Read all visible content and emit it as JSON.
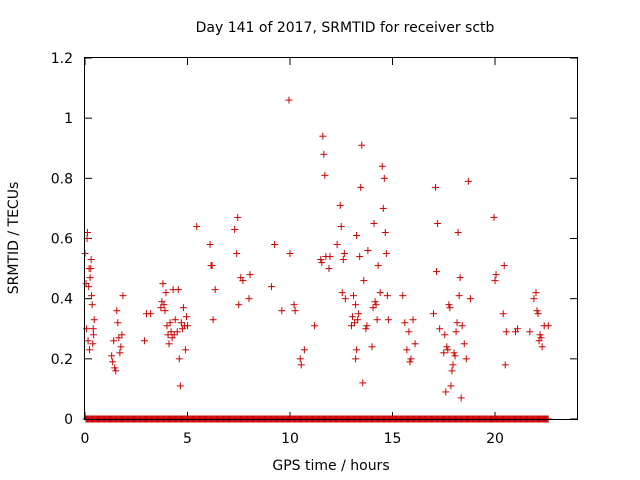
{
  "chart_data": {
    "type": "scatter",
    "title": "Day 141 of 2017, SRMTID for receiver sctb",
    "xlabel": "GPS time / hours",
    "ylabel": "SRMTID / TECUs",
    "xlim": [
      0,
      24
    ],
    "ylim": [
      0,
      1.2
    ],
    "x_ticks": [
      0,
      5,
      10,
      15,
      20
    ],
    "x_tick_labels": [
      "0",
      "5",
      "10",
      "15",
      "20"
    ],
    "y_ticks": [
      0,
      0.2,
      0.4,
      0.6,
      0.8,
      1.0,
      1.2
    ],
    "y_tick_labels": [
      "0",
      "0.2",
      "0.4",
      "0.6",
      "0.8",
      "1",
      "1.2"
    ],
    "grid": false,
    "marker": "plus",
    "marker_color": "#cc0000",
    "zero_baseline_range": [
      0.05,
      22.6
    ],
    "series": [
      {
        "name": "sctb",
        "points": [
          [
            0.0,
            0.55
          ],
          [
            0.05,
            0.45
          ],
          [
            0.08,
            0.3
          ],
          [
            0.1,
            0.6
          ],
          [
            0.12,
            0.62
          ],
          [
            0.15,
            0.26
          ],
          [
            0.18,
            0.44
          ],
          [
            0.2,
            0.5
          ],
          [
            0.22,
            0.23
          ],
          [
            0.25,
            0.47
          ],
          [
            0.28,
            0.5
          ],
          [
            0.3,
            0.53
          ],
          [
            0.32,
            0.41
          ],
          [
            0.35,
            0.38
          ],
          [
            0.38,
            0.25
          ],
          [
            0.4,
            0.3
          ],
          [
            0.42,
            0.28
          ],
          [
            0.45,
            0.33
          ],
          [
            1.3,
            0.21
          ],
          [
            1.35,
            0.19
          ],
          [
            1.4,
            0.26
          ],
          [
            1.45,
            0.17
          ],
          [
            1.5,
            0.16
          ],
          [
            1.55,
            0.36
          ],
          [
            1.6,
            0.32
          ],
          [
            1.65,
            0.27
          ],
          [
            1.7,
            0.22
          ],
          [
            1.75,
            0.24
          ],
          [
            1.8,
            0.28
          ],
          [
            1.85,
            0.41
          ],
          [
            2.9,
            0.26
          ],
          [
            3.0,
            0.35
          ],
          [
            3.2,
            0.35
          ],
          [
            3.7,
            0.37
          ],
          [
            3.75,
            0.39
          ],
          [
            3.8,
            0.45
          ],
          [
            3.85,
            0.38
          ],
          [
            3.9,
            0.36
          ],
          [
            3.95,
            0.42
          ],
          [
            4.0,
            0.31
          ],
          [
            4.05,
            0.28
          ],
          [
            4.1,
            0.25
          ],
          [
            4.15,
            0.32
          ],
          [
            4.2,
            0.29
          ],
          [
            4.25,
            0.27
          ],
          [
            4.3,
            0.43
          ],
          [
            4.35,
            0.28
          ],
          [
            4.4,
            0.33
          ],
          [
            4.5,
            0.29
          ],
          [
            4.55,
            0.43
          ],
          [
            4.6,
            0.2
          ],
          [
            4.65,
            0.11
          ],
          [
            4.7,
            0.32
          ],
          [
            4.75,
            0.3
          ],
          [
            4.8,
            0.37
          ],
          [
            4.85,
            0.31
          ],
          [
            4.9,
            0.23
          ],
          [
            4.95,
            0.34
          ],
          [
            5.0,
            0.31
          ],
          [
            5.45,
            0.64
          ],
          [
            6.1,
            0.58
          ],
          [
            6.15,
            0.51
          ],
          [
            6.2,
            0.51
          ],
          [
            6.25,
            0.33
          ],
          [
            6.35,
            0.43
          ],
          [
            7.3,
            0.63
          ],
          [
            7.4,
            0.55
          ],
          [
            7.45,
            0.67
          ],
          [
            7.5,
            0.38
          ],
          [
            7.6,
            0.47
          ],
          [
            7.7,
            0.46
          ],
          [
            8.0,
            0.4
          ],
          [
            8.05,
            0.48
          ],
          [
            9.1,
            0.44
          ],
          [
            9.25,
            0.58
          ],
          [
            9.6,
            0.36
          ],
          [
            9.95,
            1.06
          ],
          [
            10.0,
            0.55
          ],
          [
            10.2,
            0.38
          ],
          [
            10.25,
            0.36
          ],
          [
            10.5,
            0.2
          ],
          [
            10.55,
            0.18
          ],
          [
            10.7,
            0.23
          ],
          [
            11.2,
            0.31
          ],
          [
            11.5,
            0.53
          ],
          [
            11.55,
            0.52
          ],
          [
            11.6,
            0.94
          ],
          [
            11.65,
            0.88
          ],
          [
            11.7,
            0.81
          ],
          [
            11.75,
            0.54
          ],
          [
            11.9,
            0.5
          ],
          [
            11.95,
            0.54
          ],
          [
            12.3,
            0.58
          ],
          [
            12.45,
            0.71
          ],
          [
            12.5,
            0.64
          ],
          [
            12.55,
            0.42
          ],
          [
            12.6,
            0.53
          ],
          [
            12.65,
            0.55
          ],
          [
            12.7,
            0.4
          ],
          [
            13.0,
            0.31
          ],
          [
            13.05,
            0.34
          ],
          [
            13.1,
            0.41
          ],
          [
            13.15,
            0.32
          ],
          [
            13.2,
            0.38
          ],
          [
            13.25,
            0.61
          ],
          [
            13.3,
            0.33
          ],
          [
            13.35,
            0.35
          ],
          [
            13.4,
            0.54
          ],
          [
            13.45,
            0.77
          ],
          [
            13.5,
            0.91
          ],
          [
            13.55,
            0.12
          ],
          [
            13.6,
            0.46
          ],
          [
            13.7,
            0.3
          ],
          [
            13.75,
            0.31
          ],
          [
            13.8,
            0.56
          ],
          [
            14.0,
            0.24
          ],
          [
            14.05,
            0.37
          ],
          [
            14.1,
            0.65
          ],
          [
            14.15,
            0.39
          ],
          [
            14.2,
            0.38
          ],
          [
            14.25,
            0.33
          ],
          [
            14.3,
            0.51
          ],
          [
            14.4,
            0.42
          ],
          [
            14.5,
            0.84
          ],
          [
            14.55,
            0.7
          ],
          [
            14.6,
            0.8
          ],
          [
            14.65,
            0.62
          ],
          [
            14.7,
            0.55
          ],
          [
            14.75,
            0.41
          ],
          [
            14.8,
            0.33
          ],
          [
            13.2,
            0.2
          ],
          [
            13.25,
            0.23
          ],
          [
            15.5,
            0.41
          ],
          [
            15.6,
            0.32
          ],
          [
            15.7,
            0.23
          ],
          [
            15.8,
            0.29
          ],
          [
            15.85,
            0.19
          ],
          [
            15.9,
            0.2
          ],
          [
            16.0,
            0.33
          ],
          [
            16.1,
            0.25
          ],
          [
            17.0,
            0.35
          ],
          [
            17.1,
            0.77
          ],
          [
            17.15,
            0.49
          ],
          [
            17.2,
            0.65
          ],
          [
            17.3,
            0.3
          ],
          [
            17.5,
            0.22
          ],
          [
            17.55,
            0.28
          ],
          [
            17.6,
            0.09
          ],
          [
            17.7,
            0.23
          ],
          [
            17.75,
            0.38
          ],
          [
            17.8,
            0.37
          ],
          [
            17.85,
            0.11
          ],
          [
            17.9,
            0.16
          ],
          [
            17.95,
            0.18
          ],
          [
            18.0,
            0.22
          ],
          [
            18.05,
            0.21
          ],
          [
            18.1,
            0.29
          ],
          [
            18.15,
            0.32
          ],
          [
            18.2,
            0.62
          ],
          [
            18.25,
            0.41
          ],
          [
            18.3,
            0.47
          ],
          [
            18.35,
            0.07
          ],
          [
            18.4,
            0.31
          ],
          [
            18.5,
            0.25
          ],
          [
            18.6,
            0.2
          ],
          [
            18.7,
            0.79
          ],
          [
            18.8,
            0.4
          ],
          [
            17.65,
            0.24
          ],
          [
            19.95,
            0.67
          ],
          [
            20.0,
            0.46
          ],
          [
            20.05,
            0.48
          ],
          [
            20.4,
            0.35
          ],
          [
            20.45,
            0.51
          ],
          [
            20.5,
            0.18
          ],
          [
            20.55,
            0.29
          ],
          [
            21.0,
            0.29
          ],
          [
            21.1,
            0.3
          ],
          [
            21.7,
            0.29
          ],
          [
            21.9,
            0.4
          ],
          [
            22.0,
            0.42
          ],
          [
            22.05,
            0.36
          ],
          [
            22.1,
            0.35
          ],
          [
            22.15,
            0.26
          ],
          [
            22.2,
            0.28
          ],
          [
            22.25,
            0.27
          ],
          [
            22.3,
            0.24
          ],
          [
            22.4,
            0.31
          ],
          [
            22.6,
            0.31
          ]
        ]
      }
    ]
  }
}
